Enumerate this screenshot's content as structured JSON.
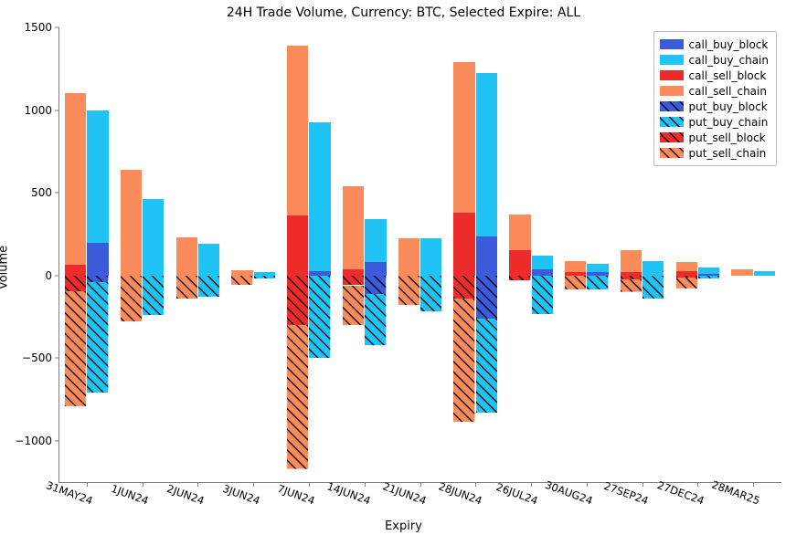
{
  "chart": {
    "type": "stacked-bar-grouped",
    "title": "24H Trade Volume, Currency: BTC, Selected Expire: ALL",
    "title_fontsize": 14,
    "xlabel": "Expiry",
    "ylabel": "Volume",
    "label_fontsize": 13,
    "tick_fontsize": 12,
    "background_color": "#ffffff",
    "ylim": [
      -1250,
      1500
    ],
    "ytick_step": 500,
    "yticks": [
      -1000,
      -500,
      0,
      500,
      1000,
      1500
    ],
    "categories": [
      "31MAY24",
      "1JUN24",
      "2JUN24",
      "3JUN24",
      "7JUN24",
      "14JUN24",
      "21JUN24",
      "28JUN24",
      "26JUL24",
      "30AUG24",
      "27SEP24",
      "27DEC24",
      "28MAR25"
    ],
    "bar_group_width": 0.8,
    "colors": {
      "call_buy_block": "#3b5bdb",
      "call_buy_chain": "#1fc4f4",
      "call_sell_block": "#ee2b2b",
      "call_sell_chain": "#fb8b5b",
      "put_buy_block": "#3b5bdb",
      "put_buy_chain": "#1fc4f4",
      "put_sell_block": "#ee2b2b",
      "put_sell_chain": "#fb8b5b"
    },
    "hatched_series": [
      "put_buy_block",
      "put_buy_chain",
      "put_sell_block",
      "put_sell_chain"
    ],
    "hatch_stroke": "#000000",
    "legend": {
      "position": "upper-right",
      "items": [
        "call_buy_block",
        "call_buy_chain",
        "call_sell_block",
        "call_sell_chain",
        "put_buy_block",
        "put_buy_chain",
        "put_sell_block",
        "put_sell_chain"
      ]
    },
    "data": {
      "31MAY24": {
        "call_sell_block": 65,
        "call_sell_chain": 1040,
        "call_buy_block": 195,
        "call_buy_chain": 800,
        "put_sell_block": -95,
        "put_sell_chain": -695,
        "put_buy_block": -40,
        "put_buy_chain": -670
      },
      "1JUN24": {
        "call_sell_block": 0,
        "call_sell_chain": 640,
        "call_buy_block": 0,
        "call_buy_chain": 460,
        "put_sell_block": 0,
        "put_sell_chain": -280,
        "put_buy_block": 0,
        "put_buy_chain": -240
      },
      "2JUN24": {
        "call_sell_block": 0,
        "call_sell_chain": 230,
        "call_buy_block": 0,
        "call_buy_chain": 190,
        "put_sell_block": 0,
        "put_sell_chain": -140,
        "put_buy_block": 0,
        "put_buy_chain": -130
      },
      "3JUN24": {
        "call_sell_block": 0,
        "call_sell_chain": 30,
        "call_buy_block": 0,
        "call_buy_chain": 20,
        "put_sell_block": 0,
        "put_sell_chain": -55,
        "put_buy_block": 0,
        "put_buy_chain": -20
      },
      "7JUN24": {
        "call_sell_block": 365,
        "call_sell_chain": 1025,
        "call_buy_block": 25,
        "call_buy_chain": 900,
        "put_sell_block": -300,
        "put_sell_chain": -870,
        "put_buy_block": 0,
        "put_buy_chain": -500
      },
      "14JUN24": {
        "call_sell_block": 35,
        "call_sell_chain": 505,
        "call_buy_block": 80,
        "call_buy_chain": 260,
        "put_sell_block": -60,
        "put_sell_chain": -240,
        "put_buy_block": -115,
        "put_buy_chain": -310
      },
      "21JUN24": {
        "call_sell_block": 0,
        "call_sell_chain": 225,
        "call_buy_block": 0,
        "call_buy_chain": 225,
        "put_sell_block": 0,
        "put_sell_chain": -180,
        "put_buy_block": 0,
        "put_buy_chain": -220
      },
      "28JUN24": {
        "call_sell_block": 380,
        "call_sell_chain": 910,
        "call_buy_block": 235,
        "call_buy_chain": 990,
        "put_sell_block": -140,
        "put_sell_chain": -745,
        "put_buy_block": -260,
        "put_buy_chain": -570
      },
      "26JUL24": {
        "call_sell_block": 155,
        "call_sell_chain": 215,
        "call_buy_block": 35,
        "call_buy_chain": 85,
        "put_sell_block": -30,
        "put_sell_chain": 0,
        "put_buy_block": 0,
        "put_buy_chain": -235
      },
      "30AUG24": {
        "call_sell_block": 20,
        "call_sell_chain": 65,
        "call_buy_block": 20,
        "call_buy_chain": 50,
        "put_sell_block": 0,
        "put_sell_chain": -85,
        "put_buy_block": 0,
        "put_buy_chain": -85
      },
      "27SEP24": {
        "call_sell_block": 20,
        "call_sell_chain": 130,
        "call_buy_block": 0,
        "call_buy_chain": 85,
        "put_sell_block": -25,
        "put_sell_chain": -75,
        "put_buy_block": 0,
        "put_buy_chain": -140
      },
      "27DEC24": {
        "call_sell_block": 25,
        "call_sell_chain": 55,
        "call_buy_block": 10,
        "call_buy_chain": 40,
        "put_sell_block": -15,
        "put_sell_chain": -65,
        "put_buy_block": 0,
        "put_buy_chain": -20
      },
      "28MAR25": {
        "call_sell_block": 0,
        "call_sell_chain": 35,
        "call_buy_block": 0,
        "call_buy_chain": 25,
        "put_sell_block": 0,
        "put_sell_chain": 0,
        "put_buy_block": 0,
        "put_buy_chain": 0
      }
    }
  }
}
